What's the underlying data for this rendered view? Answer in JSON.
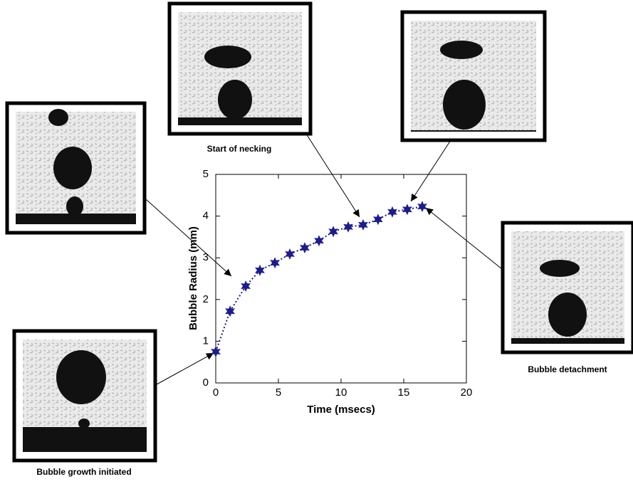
{
  "chart_data": {
    "type": "line",
    "xlabel": "Time (msecs)",
    "ylabel": "Bubble Radius (mm)",
    "x": [
      0,
      1.14,
      2.39,
      3.52,
      4.72,
      5.91,
      7.1,
      8.24,
      9.38,
      10.57,
      11.76,
      12.95,
      14.09,
      15.28,
      16.48
    ],
    "values": [
      0.75,
      1.72,
      2.32,
      2.7,
      2.88,
      3.09,
      3.24,
      3.41,
      3.63,
      3.74,
      3.79,
      3.92,
      4.1,
      4.16,
      4.23
    ],
    "color": "#1c1c8e",
    "xlim": [
      0,
      20
    ],
    "xticks": [
      0,
      5,
      10,
      15,
      20
    ],
    "ylim": [
      0,
      5
    ],
    "yticks": [
      0,
      1,
      2,
      3,
      4,
      5
    ],
    "grid": false,
    "annotations": [
      "Start of necking",
      "Bubble detachment",
      "Bubble growth initiated"
    ]
  }
}
